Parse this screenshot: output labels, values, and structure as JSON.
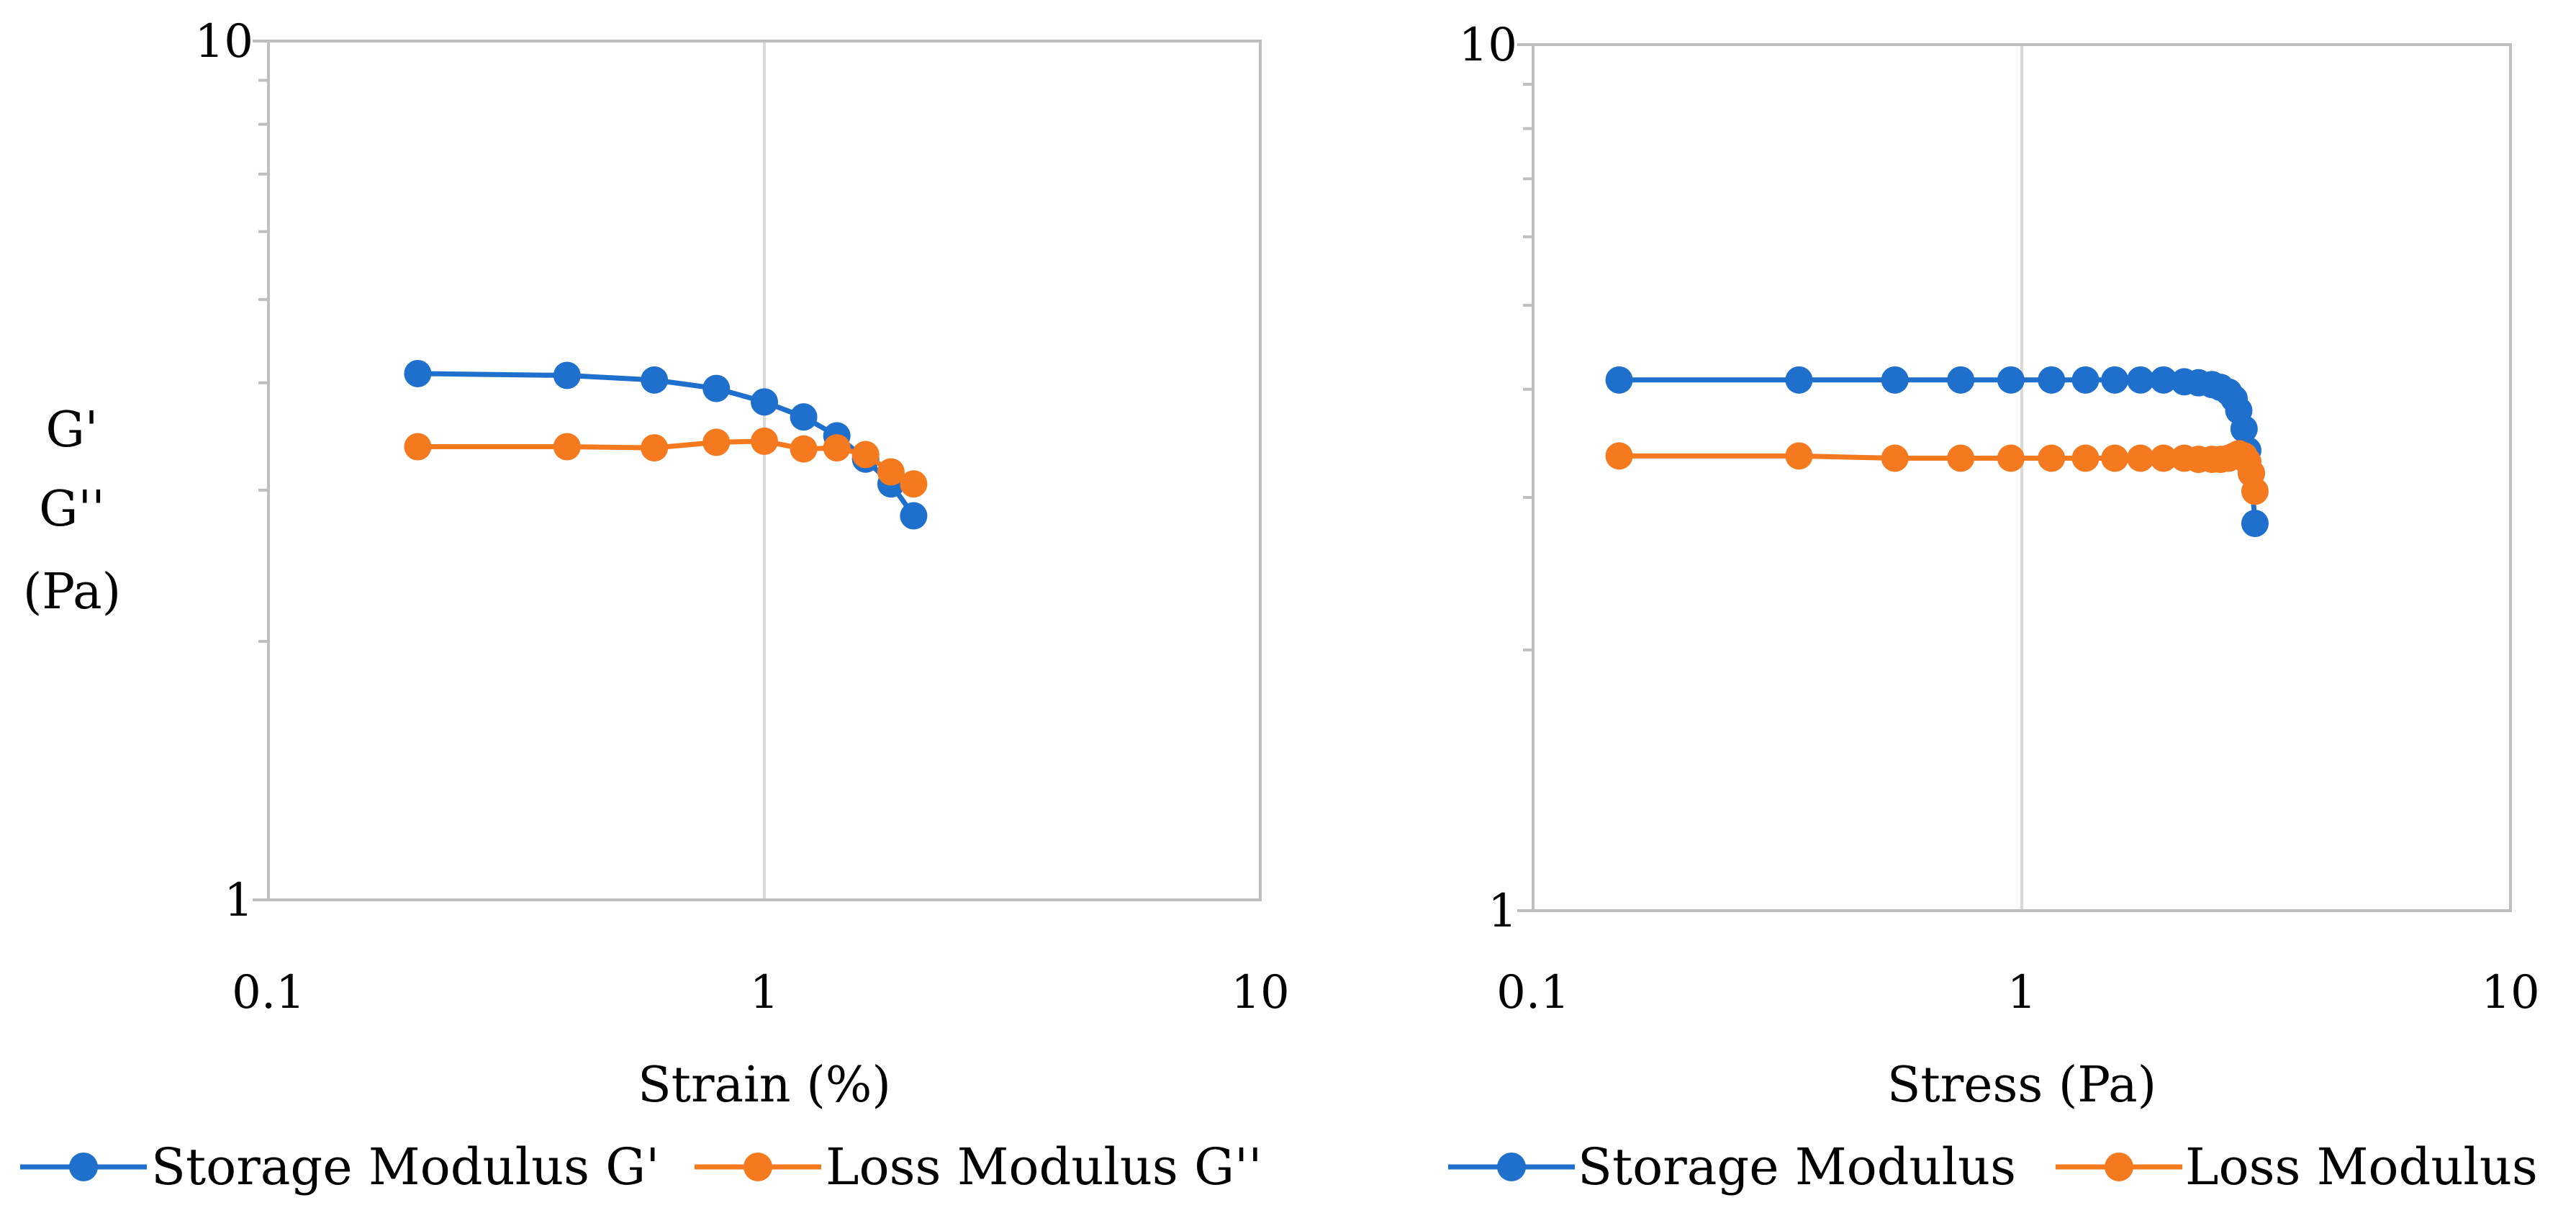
{
  "figure": {
    "colors": {
      "storage": "#1f6fcc",
      "loss": "#f5791f",
      "axis": "#bfbfbf",
      "grid": "#d9d9d9"
    }
  },
  "chart_data": [
    {
      "type": "line",
      "xscale": "log",
      "yscale": "log",
      "xlim": [
        0.1,
        10
      ],
      "ylim": [
        1,
        10
      ],
      "xticks": [
        "0.1",
        "1",
        "10"
      ],
      "yticks": [
        "1",
        "10"
      ],
      "xlabel": "Strain (%)",
      "ylabel_lines": [
        "G'",
        "G''",
        "(Pa)"
      ],
      "grid": "vertical at x = 1",
      "legend": "bottom",
      "series": [
        {
          "name": "Storage Modulus G'",
          "color": "#1f6fcc",
          "x": [
            0.2,
            0.4,
            0.6,
            0.8,
            1.0,
            1.2,
            1.4,
            1.6,
            1.8,
            2.0
          ],
          "y": [
            4.1,
            4.08,
            4.03,
            3.94,
            3.8,
            3.65,
            3.47,
            3.26,
            3.05,
            2.8
          ]
        },
        {
          "name": "Loss Modulus G''",
          "color": "#f5791f",
          "x": [
            0.2,
            0.4,
            0.6,
            0.8,
            1.0,
            1.2,
            1.4,
            1.6,
            1.8,
            2.0
          ],
          "y": [
            3.37,
            3.37,
            3.36,
            3.41,
            3.42,
            3.35,
            3.36,
            3.3,
            3.15,
            3.05
          ]
        }
      ]
    },
    {
      "type": "line",
      "xscale": "log",
      "yscale": "log",
      "xlim": [
        0.1,
        10
      ],
      "ylim": [
        1,
        10
      ],
      "xticks": [
        "0.1",
        "1",
        "10"
      ],
      "yticks": [
        "1",
        "10"
      ],
      "xlabel": "Stress (Pa)",
      "grid": "vertical at x = 1",
      "legend": "bottom",
      "series": [
        {
          "name": "Storage Modulus",
          "color": "#1f6fcc",
          "x": [
            0.15,
            0.35,
            0.55,
            0.75,
            0.95,
            1.15,
            1.35,
            1.55,
            1.75,
            1.95,
            2.15,
            2.3,
            2.45,
            2.55,
            2.65,
            2.72,
            2.78,
            2.85,
            2.9,
            2.95,
            3.0
          ],
          "y": [
            4.1,
            4.1,
            4.1,
            4.1,
            4.1,
            4.1,
            4.1,
            4.1,
            4.1,
            4.1,
            4.08,
            4.07,
            4.05,
            4.02,
            3.97,
            3.9,
            3.78,
            3.6,
            3.4,
            3.2,
            2.8
          ]
        },
        {
          "name": "Loss Modulus",
          "color": "#f5791f",
          "x": [
            0.15,
            0.35,
            0.55,
            0.75,
            0.95,
            1.15,
            1.35,
            1.55,
            1.75,
            1.95,
            2.15,
            2.3,
            2.45,
            2.55,
            2.65,
            2.72,
            2.78,
            2.85,
            2.9,
            2.95,
            3.0
          ],
          "y": [
            3.35,
            3.35,
            3.33,
            3.33,
            3.33,
            3.33,
            3.33,
            3.33,
            3.33,
            3.33,
            3.33,
            3.32,
            3.32,
            3.32,
            3.33,
            3.35,
            3.37,
            3.35,
            3.3,
            3.2,
            3.05
          ]
        }
      ]
    }
  ]
}
